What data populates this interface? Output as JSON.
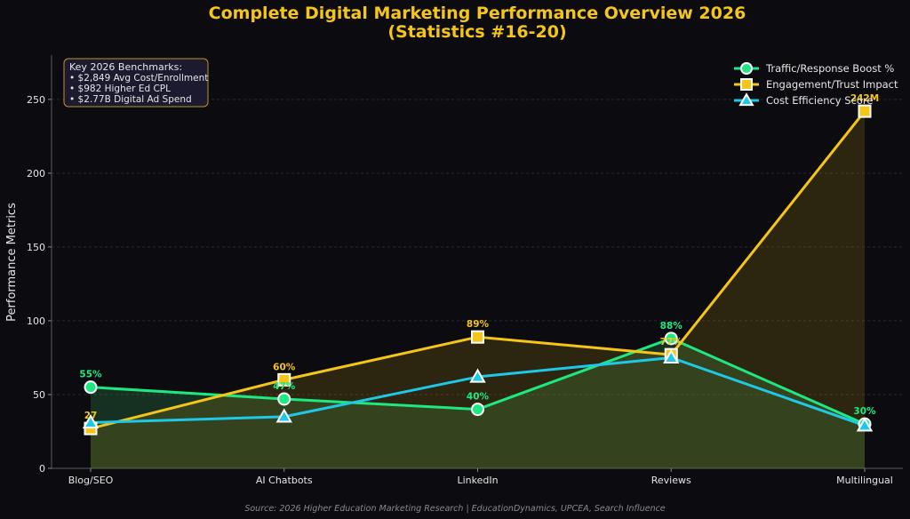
{
  "title_line1": "Complete Digital Marketing Performance Overview 2026",
  "title_line2": "(Statistics #16-20)",
  "benchmarks": {
    "heading": "Key 2026 Benchmarks:",
    "items": [
      "• $2,849 Avg Cost/Enrollment",
      "• $982 Higher Ed CPL",
      "• $2.77B Digital Ad Spend"
    ]
  },
  "source": "Source: 2026 Higher Education Marketing Research | EducationDynamics, UPCEA, Search Influence",
  "colors": {
    "background": "#0c0b10",
    "green": "#1ee882",
    "yellow": "#f5c518",
    "cyan": "#1ec8e6"
  },
  "chart_data": {
    "type": "line",
    "title": "Complete Digital Marketing Performance Overview 2026 (Statistics #16-20)",
    "ylabel": "Performance Metrics",
    "xlabel": "",
    "categories": [
      "Blog/SEO",
      "AI Chatbots",
      "LinkedIn",
      "Reviews",
      "Multilingual"
    ],
    "ylim": [
      0,
      280
    ],
    "yticks": [
      0,
      50,
      100,
      150,
      200,
      250
    ],
    "grid": true,
    "legend_position": "top-right",
    "series": [
      {
        "name": "Traffic/Response Boost %",
        "values": [
          55,
          47,
          40,
          88,
          30
        ],
        "marker": "circle",
        "color": "#1ee882",
        "fill_area": true,
        "labels": [
          "55%",
          "47%",
          "40%",
          "88%",
          "30%"
        ]
      },
      {
        "name": "Engagement/Trust Impact",
        "values": [
          27,
          60,
          89,
          77,
          242
        ],
        "marker": "square",
        "color": "#f5c518",
        "fill_area": true,
        "labels": [
          "27",
          "60%",
          "89%",
          "77%",
          "242M"
        ]
      },
      {
        "name": "Cost Efficiency Score",
        "values": [
          31,
          35,
          62,
          75,
          29
        ],
        "marker": "triangle",
        "color": "#1ec8e6",
        "fill_area": false,
        "labels": []
      }
    ]
  }
}
